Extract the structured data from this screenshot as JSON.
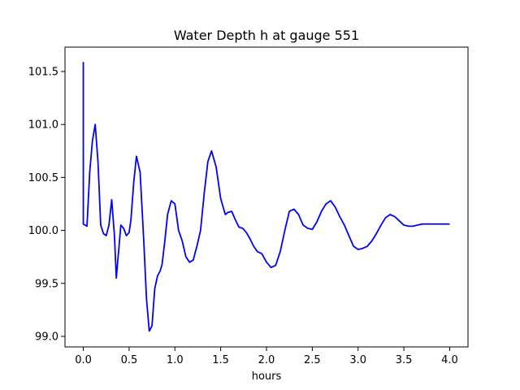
{
  "chart_data": {
    "type": "line",
    "title": "Water Depth h at gauge 551",
    "xlabel": "hours",
    "ylabel": "",
    "xlim": [
      -0.2,
      4.2
    ],
    "ylim": [
      98.9,
      101.73
    ],
    "grid": false,
    "x_ticks": [
      {
        "value": 0.0,
        "label": "0.0"
      },
      {
        "value": 0.5,
        "label": "0.5"
      },
      {
        "value": 1.0,
        "label": "1.0"
      },
      {
        "value": 1.5,
        "label": "1.5"
      },
      {
        "value": 2.0,
        "label": "2.0"
      },
      {
        "value": 2.5,
        "label": "2.5"
      },
      {
        "value": 3.0,
        "label": "3.0"
      },
      {
        "value": 3.5,
        "label": "3.5"
      },
      {
        "value": 4.0,
        "label": "4.0"
      }
    ],
    "y_ticks": [
      {
        "value": 99.0,
        "label": "99.0"
      },
      {
        "value": 99.5,
        "label": "99.5"
      },
      {
        "value": 100.0,
        "label": "100.0"
      },
      {
        "value": 100.5,
        "label": "100.5"
      },
      {
        "value": 101.0,
        "label": "101.0"
      },
      {
        "value": 101.5,
        "label": "101.5"
      }
    ],
    "series": [
      {
        "color": "#0000ff",
        "x": [
          0.0,
          0.0,
          0.0,
          0.04,
          0.07,
          0.1,
          0.13,
          0.16,
          0.19,
          0.22,
          0.25,
          0.28,
          0.31,
          0.34,
          0.36,
          0.38,
          0.41,
          0.44,
          0.47,
          0.5,
          0.52,
          0.55,
          0.58,
          0.62,
          0.66,
          0.69,
          0.72,
          0.75,
          0.78,
          0.81,
          0.84,
          0.86,
          0.89,
          0.92,
          0.96,
          1.0,
          1.04,
          1.08,
          1.12,
          1.16,
          1.2,
          1.24,
          1.28,
          1.32,
          1.36,
          1.4,
          1.45,
          1.5,
          1.55,
          1.58,
          1.62,
          1.66,
          1.7,
          1.74,
          1.78,
          1.82,
          1.86,
          1.9,
          1.95,
          2.0,
          2.05,
          2.1,
          2.15,
          2.2,
          2.25,
          2.3,
          2.35,
          2.4,
          2.45,
          2.5,
          2.55,
          2.6,
          2.65,
          2.7,
          2.75,
          2.8,
          2.85,
          2.9,
          2.95,
          3.0,
          3.05,
          3.1,
          3.15,
          3.2,
          3.25,
          3.3,
          3.35,
          3.4,
          3.45,
          3.5,
          3.55,
          3.6,
          3.65,
          3.7,
          3.75,
          3.8,
          3.85,
          3.9,
          3.95,
          4.0
        ],
        "y": [
          101.59,
          100.07,
          100.06,
          100.04,
          100.55,
          100.85,
          101.0,
          100.65,
          100.05,
          99.97,
          99.95,
          100.05,
          100.29,
          99.95,
          99.55,
          99.75,
          100.05,
          100.02,
          99.95,
          99.98,
          100.1,
          100.45,
          100.7,
          100.55,
          99.9,
          99.35,
          99.05,
          99.1,
          99.45,
          99.57,
          99.62,
          99.68,
          99.9,
          100.15,
          100.28,
          100.25,
          100.0,
          99.9,
          99.75,
          99.7,
          99.72,
          99.85,
          100.0,
          100.35,
          100.65,
          100.75,
          100.6,
          100.3,
          100.15,
          100.17,
          100.18,
          100.1,
          100.03,
          100.02,
          99.98,
          99.92,
          99.85,
          99.8,
          99.78,
          99.7,
          99.65,
          99.67,
          99.8,
          100.0,
          100.18,
          100.2,
          100.15,
          100.05,
          100.02,
          100.01,
          100.08,
          100.18,
          100.25,
          100.28,
          100.22,
          100.13,
          100.05,
          99.95,
          99.85,
          99.82,
          99.83,
          99.85,
          99.9,
          99.97,
          100.05,
          100.12,
          100.15,
          100.13,
          100.09,
          100.05,
          100.04,
          100.04,
          100.05,
          100.06,
          100.06,
          100.06,
          100.06,
          100.06,
          100.06,
          100.06
        ]
      }
    ]
  }
}
